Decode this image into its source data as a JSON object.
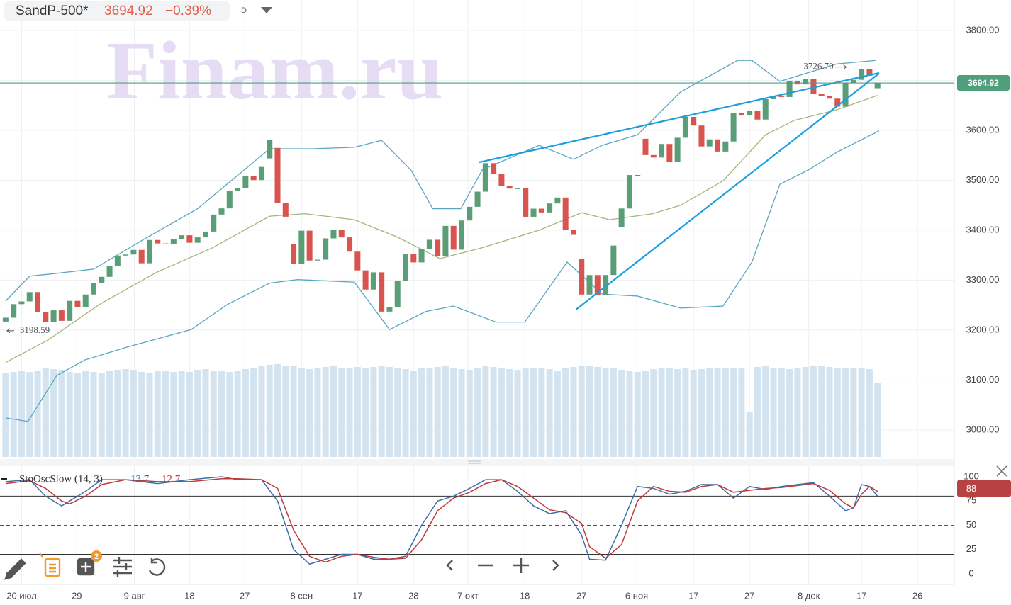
{
  "header": {
    "symbol": "SandP-500*",
    "price": 3694.92,
    "change": "−0.39%",
    "interval": "D"
  },
  "toolbar": {
    "badge": 2
  },
  "chart_data": [
    {
      "type": "candlestick",
      "watermark": "Finam.ru",
      "x": [
        0,
        1,
        2,
        3,
        4,
        5,
        6,
        7,
        8,
        9,
        10,
        11,
        12,
        13,
        14,
        15,
        16,
        17,
        18,
        19,
        20,
        21,
        22,
        23,
        24,
        25,
        26,
        27,
        28,
        29,
        30,
        31,
        32,
        33,
        34,
        35,
        36,
        37,
        38,
        39,
        40,
        41,
        42,
        43,
        44,
        45,
        46,
        47,
        48,
        49,
        50,
        51,
        52,
        53,
        54,
        55,
        56,
        57,
        58,
        59,
        60,
        61,
        62,
        63,
        64,
        65,
        66,
        67,
        68,
        69,
        70,
        71,
        72,
        73,
        74,
        75,
        76,
        77,
        78,
        79,
        80,
        81,
        82,
        83,
        84,
        85,
        86,
        87,
        88,
        89,
        90,
        91,
        92,
        93,
        94,
        95,
        96,
        97,
        98,
        99,
        100,
        101,
        102,
        103,
        104,
        105,
        106,
        107,
        108,
        109
      ],
      "open": [
        3217.0,
        3224.73,
        3251.84,
        3257.3,
        3276.02,
        3235.66,
        3215.63,
        3239.41,
        3218.44,
        3258.44,
        3246.22,
        3271.12,
        3294.61,
        3306.51,
        3327.77,
        3349.16,
        3351.28,
        3360.47,
        3333.69,
        3380.35,
        3373.43,
        3372.85,
        3381.99,
        3389.78,
        3374.85,
        3385.51,
        3397.16,
        3431.28,
        3443.62,
        3478.73,
        3484.55,
        3508.01,
        3500.31,
        3543.76,
        3564.74,
        3455.06,
        3371.88,
        3331.84,
        3398.96,
        3339.19,
        3340.97,
        3383.54,
        3401.2,
        3385.49,
        3357.01,
        3319.47,
        3281.06,
        3315.57,
        3236.92,
        3246.59,
        3298.46,
        3351.6,
        3335.47,
        3363.0,
        3380.8,
        3348.42,
        3408.6,
        3360.97,
        3419.44,
        3446.83,
        3477.14,
        3534.22,
        3511.93,
        3488.67,
        3483.34,
        3483.81,
        3426.92,
        3443.12,
        3435.56,
        3453.49,
        3465.39,
        3400.97,
        3342.48,
        3271.03,
        3310.11,
        3269.96,
        3310.24,
        3406.46,
        3443.44,
        3510.45,
        3583.04,
        3550.5,
        3545.53,
        3572.66,
        3537.01,
        3585.15,
        3626.91,
        3609.53,
        3567.79,
        3581.87,
        3557.54,
        3577.59,
        3635.41,
        3629.65,
        3638.35,
        3621.63,
        3662.45,
        3669.01,
        3666.72,
        3699.12,
        3691.96,
        3702.25,
        3672.82,
        3668.1,
        3663.46,
        3647.49,
        3694.62,
        3701.17,
        3722.48,
        3684.28
      ],
      "close": [
        3224.73,
        3251.84,
        3257.3,
        3276.02,
        3235.66,
        3215.63,
        3239.41,
        3218.44,
        3258.44,
        3246.22,
        3271.12,
        3294.61,
        3306.51,
        3327.77,
        3349.16,
        3351.28,
        3360.47,
        3333.69,
        3380.35,
        3373.43,
        3372.85,
        3381.99,
        3389.78,
        3374.85,
        3385.51,
        3397.16,
        3431.28,
        3443.62,
        3478.73,
        3484.55,
        3508.01,
        3500.31,
        3526.65,
        3580.84,
        3455.06,
        3426.96,
        3331.84,
        3398.96,
        3339.19,
        3340.97,
        3383.54,
        3401.2,
        3385.49,
        3357.01,
        3319.47,
        3281.06,
        3315.57,
        3236.92,
        3246.59,
        3298.46,
        3351.6,
        3335.47,
        3363.0,
        3380.8,
        3348.42,
        3408.6,
        3360.97,
        3419.44,
        3446.83,
        3477.14,
        3534.22,
        3511.93,
        3488.67,
        3483.34,
        3483.81,
        3426.92,
        3443.12,
        3435.56,
        3453.49,
        3465.39,
        3400.97,
        3390.68,
        3271.03,
        3310.11,
        3269.96,
        3310.24,
        3369.16,
        3443.44,
        3510.45,
        3509.44,
        3550.5,
        3545.53,
        3572.66,
        3537.01,
        3585.15,
        3626.91,
        3609.53,
        3567.79,
        3581.87,
        3557.54,
        3577.59,
        3635.41,
        3629.65,
        3638.35,
        3621.63,
        3662.45,
        3669.01,
        3666.72,
        3699.12,
        3691.96,
        3702.25,
        3672.82,
        3668.1,
        3663.46,
        3647.49,
        3694.62,
        3701.17,
        3722.48,
        3709.41,
        3694.92
      ],
      "up_color": "#5a9e78",
      "down_color": "#d9534f",
      "volume": [
        118,
        120,
        121,
        120,
        122,
        125,
        124,
        123,
        120,
        119,
        121,
        120,
        119,
        122,
        123,
        124,
        123,
        120,
        119,
        121,
        122,
        120,
        121,
        120,
        123,
        124,
        122,
        121,
        120,
        122,
        124,
        126,
        128,
        130,
        131,
        129,
        128,
        126,
        124,
        125,
        127,
        128,
        126,
        125,
        127,
        126,
        127,
        128,
        127,
        126,
        124,
        122,
        125,
        126,
        127,
        128,
        125,
        124,
        123,
        126,
        128,
        127,
        126,
        124,
        123,
        125,
        126,
        125,
        124,
        122,
        126,
        127,
        128,
        129,
        127,
        126,
        125,
        123,
        121,
        120,
        122,
        124,
        125,
        126,
        124,
        125,
        123,
        124,
        125,
        126,
        125,
        126,
        125,
        64,
        127,
        128,
        126,
        125,
        124,
        126,
        127,
        129,
        128,
        127,
        126,
        125,
        126,
        125,
        124,
        104
      ],
      "volume_color": "#d3e3ef",
      "volume_lim": [
        0,
        140
      ],
      "xlim": [
        -0.7,
        118.6
      ],
      "xticks": [
        {
          "value": 2.0,
          "label": "20 июл"
        },
        {
          "value": 8.9,
          "label": "29"
        },
        {
          "value": 16.1,
          "label": "9 авг"
        },
        {
          "value": 23.0,
          "label": "18"
        },
        {
          "value": 29.9,
          "label": "27"
        },
        {
          "value": 37.0,
          "label": "8 сен"
        },
        {
          "value": 44.0,
          "label": "17"
        },
        {
          "value": 51.0,
          "label": "28"
        },
        {
          "value": 57.8,
          "label": "7 окт"
        },
        {
          "value": 64.9,
          "label": "18"
        },
        {
          "value": 72.0,
          "label": "27"
        },
        {
          "value": 78.9,
          "label": "6 ноя"
        },
        {
          "value": 86.0,
          "label": "17"
        },
        {
          "value": 93.0,
          "label": "27"
        },
        {
          "value": 100.4,
          "label": "8 дек"
        },
        {
          "value": 107.0,
          "label": "17"
        },
        {
          "value": 114.0,
          "label": "26"
        }
      ],
      "ylim": [
        2943,
        3861
      ],
      "yticks": [
        {
          "value": 3000,
          "label": "3000.00"
        },
        {
          "value": 3100,
          "label": "3100.00"
        },
        {
          "value": 3200,
          "label": "3200.00"
        },
        {
          "value": 3300,
          "label": "3300.00"
        },
        {
          "value": 3400,
          "label": "3400.00"
        },
        {
          "value": 3500,
          "label": "3500.00"
        },
        {
          "value": 3600,
          "label": "3600.00"
        },
        {
          "value": 3700,
          "label": "3700.00"
        },
        {
          "value": 3800,
          "label": "3800.00"
        }
      ],
      "last_price": 3694.92,
      "last_color": "#4f9e7c",
      "annotations": [
        {
          "x": 103.5,
          "value": 3726.7,
          "label": "3726.70"
        },
        {
          "x": 0,
          "value": 3198.59,
          "label": "3198.59"
        }
      ],
      "trend_color": "#1a9ede",
      "trend_lines": [
        {
          "x": [
            59.2,
            109.2
          ],
          "y": [
            3536,
            3715
          ]
        },
        {
          "x": [
            71.3,
            109.2
          ],
          "y": [
            3241,
            3714
          ]
        }
      ],
      "bands": [
        {
          "color": "#5aa6c0",
          "x": [
            0,
            3,
            5.5,
            11,
            17,
            24,
            33,
            38.3,
            43.6,
            47,
            50.7,
            53.4,
            56.9,
            59.6,
            66.7,
            71,
            74.6,
            79,
            84.4,
            91.5,
            93.3,
            96.8,
            103.9,
            108.8
          ],
          "values": [
            3258,
            3308,
            3312,
            3322,
            3379,
            3443,
            3563,
            3563,
            3566,
            3580,
            3520,
            3443,
            3443,
            3521,
            3570,
            3542,
            3570,
            3591,
            3677,
            3740,
            3740,
            3698,
            3733,
            3740
          ]
        },
        {
          "color": "#5aa6c0",
          "x": [
            0,
            2.8,
            6.4,
            9.9,
            15.2,
            23.2,
            27.7,
            33,
            36.5,
            43.6,
            48,
            52.5,
            56,
            61.3,
            64.9,
            70.2,
            74.6,
            79,
            84.4,
            89.7,
            93.3,
            96.8,
            100.4,
            103.9,
            109.2
          ],
          "values": [
            3024,
            3017,
            3109,
            3140,
            3166,
            3201,
            3251,
            3294,
            3301,
            3296,
            3201,
            3237,
            3248,
            3216,
            3216,
            3336,
            3272,
            3268,
            3244,
            3248,
            3336,
            3492,
            3521,
            3556,
            3599
          ]
        },
        {
          "color": "#a7b47a",
          "x": [
            0,
            5.3,
            11.7,
            18.8,
            25.9,
            33,
            37.4,
            43.6,
            49,
            54.3,
            59.6,
            66.7,
            72,
            75.5,
            80.9,
            84.4,
            89.7,
            95,
            98.6,
            103.9,
            109
          ],
          "values": [
            3135,
            3180,
            3251,
            3315,
            3365,
            3428,
            3433,
            3421,
            3386,
            3343,
            3365,
            3400,
            3435,
            3421,
            3433,
            3450,
            3499,
            3591,
            3620,
            3641,
            3670
          ]
        }
      ]
    },
    {
      "type": "line",
      "title": "StoOscSlow (14, 3)",
      "legend_values": [
        13.7,
        12.7
      ],
      "x": [
        0,
        3,
        5,
        7,
        8,
        10,
        12,
        15,
        19,
        23,
        27,
        29,
        32,
        34,
        36,
        38,
        40,
        42,
        44,
        46,
        48,
        50,
        52,
        54,
        56,
        58,
        60,
        62,
        64,
        66,
        68,
        70,
        72,
        73,
        75,
        77,
        79,
        81,
        83,
        85,
        87,
        89,
        91,
        93,
        95,
        97,
        99,
        101,
        103,
        105,
        106,
        107,
        108,
        109
      ],
      "series": [
        {
          "color": "#3c6ea8",
          "values": [
            95,
            97,
            80,
            70,
            75,
            85,
            97,
            97,
            93,
            97,
            100,
            97,
            97,
            75,
            25,
            10,
            15,
            20,
            20,
            15,
            15,
            18,
            50,
            75,
            80,
            88,
            97,
            97,
            85,
            70,
            62,
            65,
            40,
            15,
            14,
            50,
            90,
            88,
            82,
            85,
            92,
            92,
            78,
            90,
            87,
            90,
            92,
            94,
            80,
            65,
            68,
            92,
            90,
            80
          ]
        },
        {
          "color": "#c0393b",
          "values": [
            93,
            96,
            88,
            75,
            72,
            80,
            92,
            97,
            95,
            95,
            98,
            98,
            97,
            88,
            45,
            18,
            12,
            18,
            20,
            17,
            15,
            16,
            35,
            65,
            78,
            84,
            93,
            97,
            90,
            78,
            66,
            63,
            52,
            28,
            16,
            30,
            75,
            90,
            85,
            84,
            90,
            92,
            84,
            86,
            88,
            89,
            91,
            93,
            86,
            72,
            68,
            82,
            90,
            85
          ]
        }
      ],
      "xlim": [
        -0.7,
        118.6
      ],
      "ylim": [
        -11,
        109.5
      ],
      "yticks": [
        0,
        25,
        50,
        75,
        100
      ],
      "levels": [
        20,
        50,
        80
      ],
      "badge": 88,
      "badge_color": "#b84141"
    }
  ]
}
